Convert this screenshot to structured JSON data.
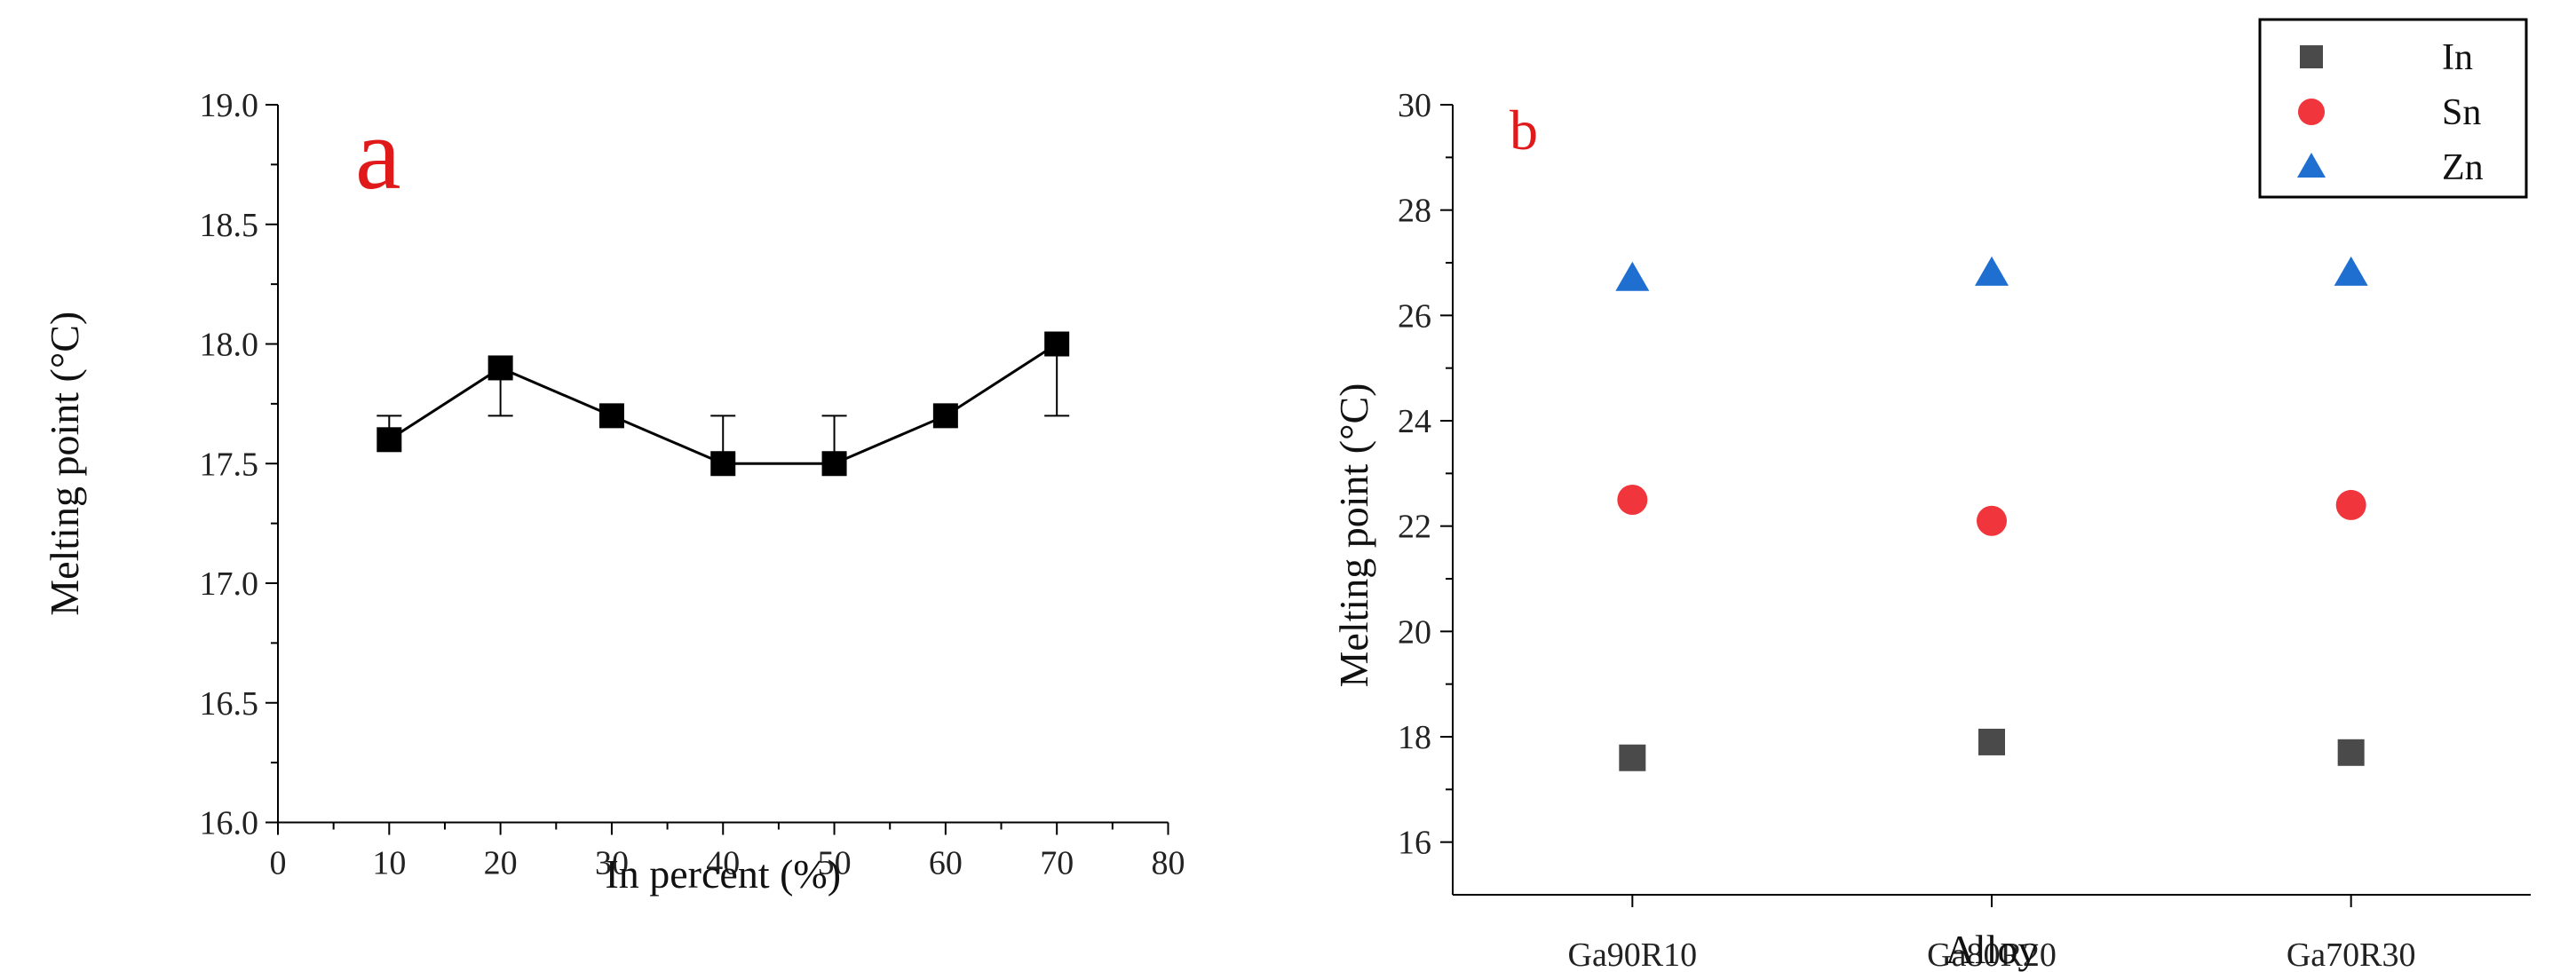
{
  "chart_data": [
    {
      "panel": "a",
      "type": "line",
      "xlabel": "In percent (%)",
      "ylabel": "Melting point (°C)",
      "xlim": [
        0,
        80
      ],
      "ylim": [
        16.0,
        19.0
      ],
      "x_ticks": [
        "0",
        "10",
        "20",
        "30",
        "40",
        "50",
        "60",
        "70",
        "80"
      ],
      "y_ticks": [
        "16.0",
        "16.5",
        "17.0",
        "17.5",
        "18.0",
        "18.5",
        "19.0"
      ],
      "grid": false,
      "series": [
        {
          "x": [
            10,
            20,
            30,
            40,
            50,
            60,
            70
          ],
          "y": [
            17.6,
            17.9,
            17.7,
            17.5,
            17.5,
            17.7,
            18.0
          ],
          "error_low": [
            0.0,
            0.2,
            0.0,
            0.0,
            0.0,
            0.0,
            0.3
          ],
          "error_high": [
            0.1,
            0.0,
            0.0,
            0.2,
            0.2,
            0.0,
            0.0
          ],
          "marker": "square",
          "color": "#000000"
        }
      ]
    },
    {
      "panel": "b",
      "type": "scatter",
      "xlabel": "Alloy",
      "ylabel": "Melting point (°C)",
      "categories": [
        "Ga90R10",
        "Ga80R20",
        "Ga70R30"
      ],
      "ylim": [
        15,
        30
      ],
      "y_ticks": [
        "16",
        "18",
        "20",
        "22",
        "24",
        "26",
        "28",
        "30"
      ],
      "grid": false,
      "legend_position": "top-right",
      "series": [
        {
          "name": "In",
          "values": [
            17.6,
            17.9,
            17.7
          ],
          "marker": "square",
          "color": "#4a4a4a"
        },
        {
          "name": "Sn",
          "values": [
            22.5,
            22.1,
            22.4
          ],
          "marker": "circle",
          "color": "#f0363c"
        },
        {
          "name": "Zn",
          "values": [
            26.7,
            26.8,
            26.8
          ],
          "marker": "triangle",
          "color": "#1f6fd1"
        }
      ]
    }
  ]
}
